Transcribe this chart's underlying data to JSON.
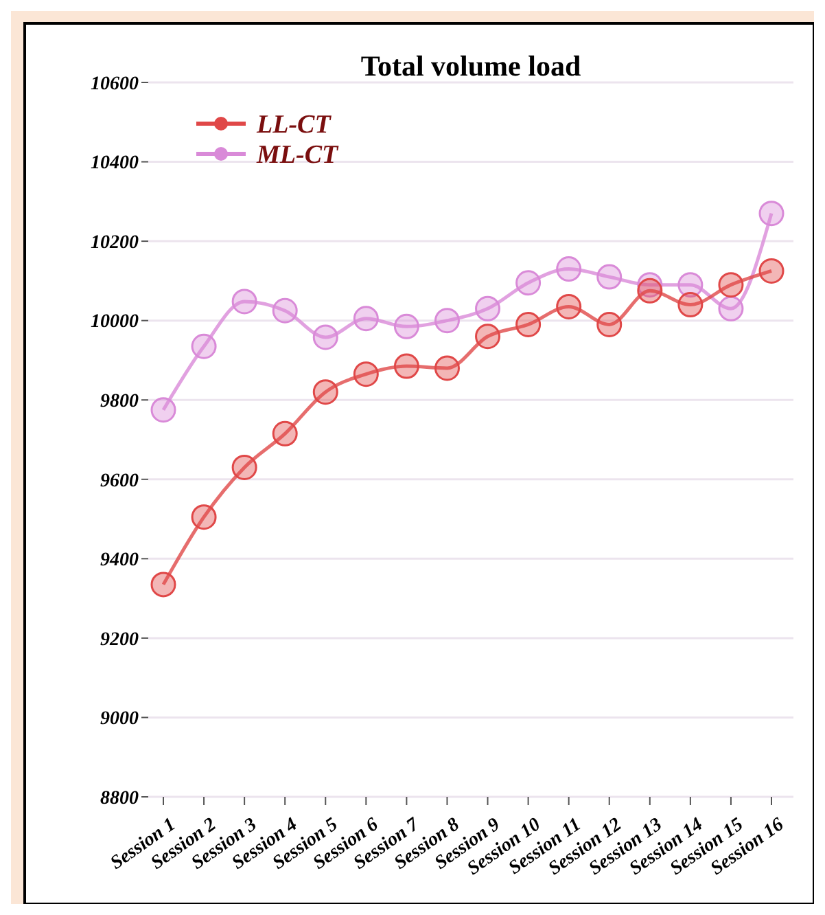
{
  "chart_data": {
    "type": "line",
    "title": "Total volume load",
    "categories": [
      "Session 1",
      "Session 2",
      "Session 3",
      "Session 4",
      "Session 5",
      "Session 6",
      "Session 7",
      "Session 8",
      "Session 9",
      "Session 10",
      "Session 11",
      "Session 12",
      "Session 13",
      "Session 14",
      "Session 15",
      "Session 16"
    ],
    "series": [
      {
        "name": "LL-CT",
        "color": "#e04848",
        "values": [
          9335,
          9505,
          9630,
          9715,
          9820,
          9865,
          9885,
          9880,
          9960,
          9990,
          10035,
          9990,
          10075,
          10040,
          10090,
          10125
        ]
      },
      {
        "name": "ML-CT",
        "color": "#d98ad8",
        "values": [
          9775,
          9935,
          10048,
          10025,
          9958,
          10005,
          9985,
          10000,
          10030,
          10095,
          10130,
          10110,
          10090,
          10090,
          10030,
          10270
        ]
      }
    ],
    "ylim": [
      8800,
      10600
    ],
    "yticks": [
      8800,
      9000,
      9200,
      9400,
      9600,
      9800,
      10000,
      10200,
      10400,
      10600
    ],
    "grid": "y",
    "legend": "top left",
    "marker": "circle",
    "line_style": "solid"
  }
}
